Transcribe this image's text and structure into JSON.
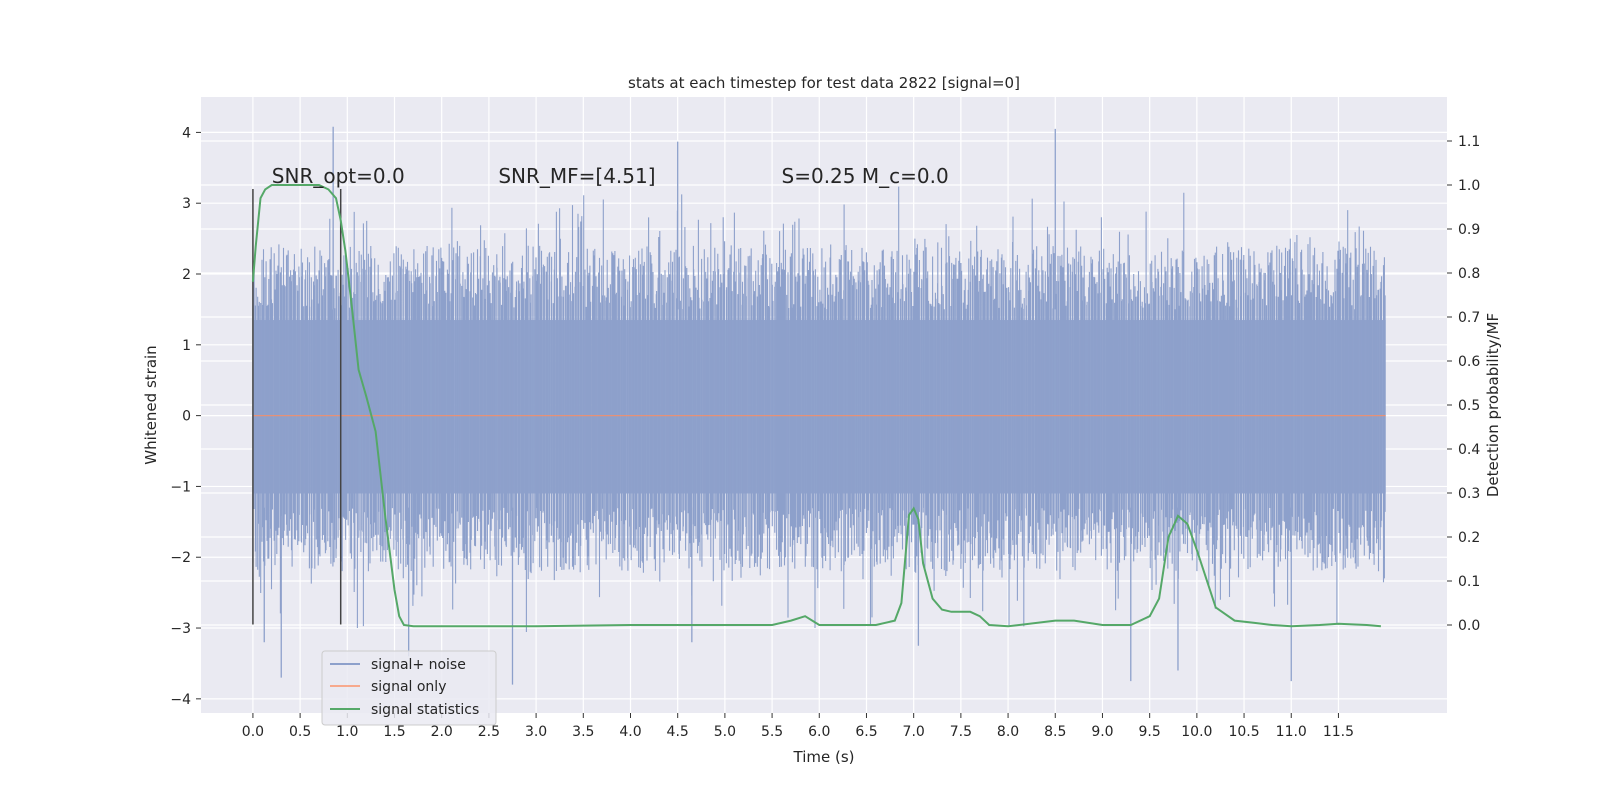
{
  "chart_data": {
    "type": "line",
    "title": "stats at each timestep for test data 2822 [signal=0]",
    "xlabel": "Time (s)",
    "ylabel_left": "Whitened strain",
    "ylabel_right": "Detection probability/MF",
    "xlim": [
      -0.55,
      12.65
    ],
    "ylim_left": [
      -4.2,
      4.5
    ],
    "ylim_right": [
      -0.2,
      1.2
    ],
    "x_ticks": [
      "0.0",
      "0.5",
      "1.0",
      "1.5",
      "2.0",
      "2.5",
      "3.0",
      "3.5",
      "4.0",
      "4.5",
      "5.0",
      "5.5",
      "6.0",
      "6.5",
      "7.0",
      "7.5",
      "8.0",
      "8.5",
      "9.0",
      "9.5",
      "10.0",
      "10.5",
      "11.0",
      "11.5"
    ],
    "y_left_ticks": [
      "4",
      "3",
      "2",
      "1",
      "0",
      "−1",
      "−2",
      "−3",
      "−4"
    ],
    "y_right_ticks": [
      "1.1",
      "1.0",
      "0.9",
      "0.8",
      "0.7",
      "0.6",
      "0.5",
      "0.4",
      "0.3",
      "0.2",
      "0.1",
      "0.0"
    ],
    "grid": true,
    "legend_position": "lower-left",
    "annotations": [
      {
        "text": "SNR_opt=0.0",
        "x": 0.2,
        "y_right": 1.0
      },
      {
        "text": "SNR_MF=[4.51]",
        "x": 2.6,
        "y_right": 1.0
      },
      {
        "text": "S=0.25   M_c=0.0",
        "x": 5.6,
        "y_right": 1.0
      }
    ],
    "vertical_lines": [
      {
        "x": 0.0,
        "y_range": [
          -2.95,
          3.2
        ]
      },
      {
        "x": 0.93,
        "y_range": [
          -2.95,
          3.2
        ]
      }
    ],
    "series": [
      {
        "name": "signal+ noise",
        "axis": "left",
        "color": "#8da0cb",
        "kind": "noise",
        "x_range": [
          0.0,
          12.0
        ],
        "core_band": [
          -1.1,
          1.35
        ],
        "spikes": [
          {
            "x": 0.85,
            "y": 4.08
          },
          {
            "x": 4.5,
            "y": 3.87
          },
          {
            "x": 8.5,
            "y": 4.05
          },
          {
            "x": 0.12,
            "y": -3.2
          },
          {
            "x": 0.3,
            "y": -3.7
          },
          {
            "x": 1.65,
            "y": -3.4
          },
          {
            "x": 2.75,
            "y": -3.8
          },
          {
            "x": 4.65,
            "y": -3.2
          },
          {
            "x": 7.05,
            "y": -3.25
          },
          {
            "x": 9.3,
            "y": -3.75
          },
          {
            "x": 9.8,
            "y": -3.6
          },
          {
            "x": 11.0,
            "y": -3.75
          }
        ]
      },
      {
        "name": "signal only",
        "axis": "left",
        "color": "#fc8d62",
        "x": [
          0.0,
          12.0
        ],
        "y": [
          0.0,
          0.0
        ]
      },
      {
        "name": "signal statistics",
        "axis": "right",
        "color": "#55a868",
        "x": [
          0.0,
          0.03,
          0.08,
          0.13,
          0.2,
          0.3,
          0.4,
          0.5,
          0.6,
          0.7,
          0.8,
          0.88,
          0.93,
          0.98,
          1.05,
          1.12,
          1.2,
          1.3,
          1.4,
          1.5,
          1.55,
          1.6,
          1.7,
          2.0,
          3.0,
          4.0,
          4.5,
          5.0,
          5.5,
          5.7,
          5.85,
          6.0,
          6.2,
          6.6,
          6.8,
          6.87,
          6.95,
          7.0,
          7.05,
          7.1,
          7.2,
          7.3,
          7.4,
          7.5,
          7.6,
          7.7,
          7.8,
          8.0,
          8.5,
          8.7,
          9.0,
          9.3,
          9.5,
          9.6,
          9.7,
          9.8,
          9.9,
          10.0,
          10.2,
          10.4,
          10.6,
          10.8,
          11.0,
          11.3,
          11.5,
          11.8,
          11.95
        ],
        "y": [
          0.78,
          0.86,
          0.97,
          0.99,
          1.0,
          1.0,
          1.0,
          1.0,
          1.0,
          1.0,
          0.99,
          0.97,
          0.92,
          0.85,
          0.72,
          0.58,
          0.52,
          0.44,
          0.25,
          0.08,
          0.02,
          0.0,
          -0.003,
          -0.003,
          -0.003,
          0.0,
          0.0,
          0.0,
          0.0,
          0.01,
          0.02,
          0.0,
          0.0,
          0.0,
          0.01,
          0.05,
          0.25,
          0.265,
          0.24,
          0.14,
          0.06,
          0.035,
          0.03,
          0.03,
          0.03,
          0.02,
          0.0,
          -0.003,
          0.01,
          0.01,
          0.0,
          0.0,
          0.02,
          0.06,
          0.2,
          0.248,
          0.23,
          0.17,
          0.04,
          0.01,
          0.005,
          0.0,
          -0.003,
          0.0,
          0.003,
          0.0,
          -0.003
        ]
      }
    ]
  }
}
